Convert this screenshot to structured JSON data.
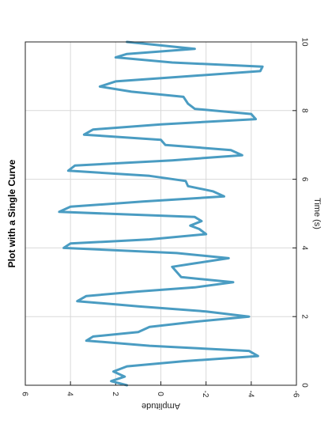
{
  "chart_data": {
    "type": "line",
    "title": "Plot with a Single Curve",
    "xlabel": "Time (s)",
    "ylabel": "Amplitude",
    "xlim": [
      0,
      10
    ],
    "ylim": [
      -6,
      6
    ],
    "xticks": [
      0,
      2,
      4,
      6,
      8,
      10
    ],
    "yticks": [
      6,
      4,
      2,
      0,
      -2,
      -4,
      -6
    ],
    "grid": true,
    "orientation": "rotated 90° (x axis runs vertically, y axis runs horizontally)",
    "series": [
      {
        "color": "#4a9cc2",
        "x": [
          0,
          0.12,
          0.25,
          0.4,
          0.55,
          0.7,
          0.85,
          1.0,
          1.15,
          1.3,
          1.42,
          1.55,
          1.7,
          1.85,
          2.0,
          2.15,
          2.3,
          2.45,
          2.6,
          2.73,
          2.85,
          3.0,
          3.15,
          3.3,
          3.45,
          3.55,
          3.7,
          3.85,
          4.0,
          4.13,
          4.25,
          4.4,
          4.55,
          4.65,
          4.78,
          4.9,
          5.05,
          5.2,
          5.35,
          5.5,
          5.65,
          5.8,
          5.95,
          6.1,
          6.25,
          6.4,
          6.55,
          6.7,
          6.85,
          7.0,
          7.15,
          7.3,
          7.45,
          7.6,
          7.75,
          7.9,
          8.05,
          8.2,
          8.4,
          8.55,
          8.7,
          8.85,
          9.0,
          9.15,
          9.28,
          9.4,
          9.55,
          9.65,
          9.8,
          10.0
        ],
        "y": [
          1.5,
          2.2,
          1.6,
          2.1,
          1.5,
          -1.0,
          -4.3,
          -3.9,
          0.5,
          3.3,
          3.0,
          1.0,
          0.5,
          -1.5,
          -3.9,
          -2.0,
          1.0,
          3.7,
          3.3,
          1.0,
          -1.5,
          -3.2,
          -0.9,
          -0.7,
          -0.5,
          -1.5,
          -3.0,
          -0.7,
          4.3,
          4.0,
          0.5,
          -2.0,
          -1.7,
          -1.3,
          -1.8,
          -1.5,
          4.5,
          4.0,
          0.8,
          -2.8,
          -2.3,
          -1.2,
          -1.1,
          0.5,
          4.1,
          3.8,
          -0.5,
          -3.6,
          -3.1,
          -0.2,
          0.0,
          3.4,
          3.0,
          0.0,
          -4.2,
          -4.0,
          -1.5,
          -1.2,
          -1.0,
          1.3,
          2.7,
          2.0,
          -1.2,
          -4.4,
          -4.5,
          -0.5,
          2.0,
          1.5,
          -1.5,
          1.5
        ]
      }
    ]
  }
}
